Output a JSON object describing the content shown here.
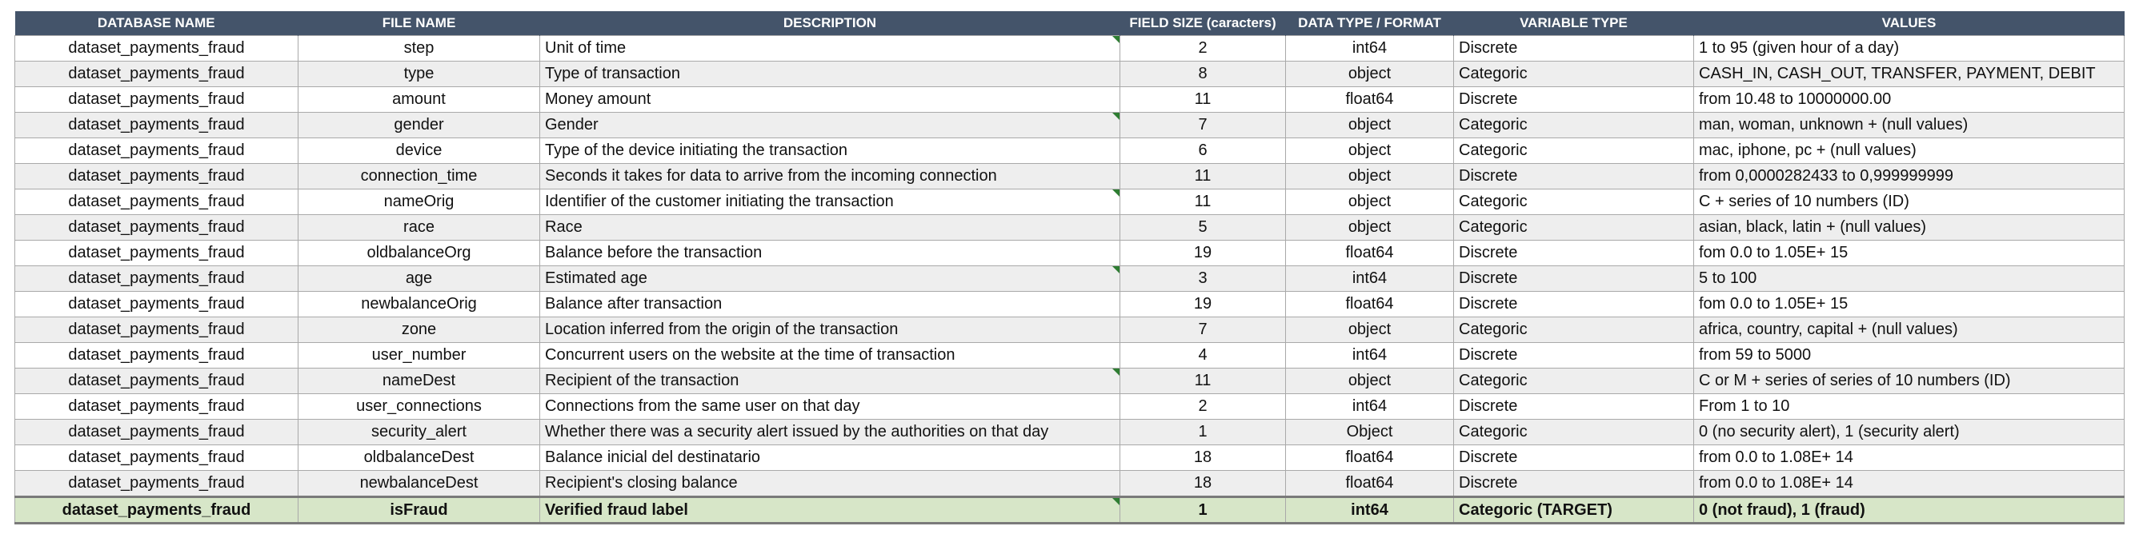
{
  "columns": [
    "DATABASE NAME",
    "FILE NAME",
    "DESCRIPTION",
    "FIELD SIZE (caracters)",
    "DATA TYPE / FORMAT",
    "VARIABLE TYPE",
    "VALUES"
  ],
  "rows": [
    {
      "db": "dataset_payments_fraud",
      "file": "step",
      "desc": "Unit of time",
      "size": "2",
      "dtype": "int64",
      "vtype": "Discrete",
      "values": "1 to 95 (given hour of a day)",
      "note": true
    },
    {
      "db": "dataset_payments_fraud",
      "file": "type",
      "desc": "Type of transaction",
      "size": "8",
      "dtype": "object",
      "vtype": "Categoric",
      "values": "CASH_IN, CASH_OUT, TRANSFER, PAYMENT, DEBIT",
      "note": false
    },
    {
      "db": "dataset_payments_fraud",
      "file": "amount",
      "desc": "Money amount",
      "size": "11",
      "dtype": "float64",
      "vtype": "Discrete",
      "values": "from 10.48 to 10000000.00",
      "note": false
    },
    {
      "db": "dataset_payments_fraud",
      "file": "gender",
      "desc": "Gender",
      "size": "7",
      "dtype": "object",
      "vtype": "Categoric",
      "values": "man, woman, unknown + (null values)",
      "note": true
    },
    {
      "db": "dataset_payments_fraud",
      "file": "device",
      "desc": "Type of the device initiating the transaction",
      "size": "6",
      "dtype": "object",
      "vtype": "Categoric",
      "values": "mac, iphone, pc + (null values)",
      "note": false
    },
    {
      "db": "dataset_payments_fraud",
      "file": "connection_time",
      "desc": "Seconds it takes for data to arrive from the incoming connection",
      "size": "11",
      "dtype": "object",
      "vtype": "Discrete",
      "values": "from 0,0000282433 to 0,999999999",
      "note": false
    },
    {
      "db": "dataset_payments_fraud",
      "file": "nameOrig",
      "desc": "Identifier of the customer initiating the transaction",
      "size": "11",
      "dtype": "object",
      "vtype": "Categoric",
      "values": "C + series of 10 numbers (ID)",
      "note": true
    },
    {
      "db": "dataset_payments_fraud",
      "file": "race",
      "desc": "Race",
      "size": "5",
      "dtype": "object",
      "vtype": "Categoric",
      "values": "asian, black, latin + (null values)",
      "note": false
    },
    {
      "db": "dataset_payments_fraud",
      "file": "oldbalanceOrg",
      "desc": "Balance before the transaction",
      "size": "19",
      "dtype": "float64",
      "vtype": "Discrete",
      "values": "fom 0.0 to  1.05E+ 15",
      "note": false
    },
    {
      "db": "dataset_payments_fraud",
      "file": "age",
      "desc": "Estimated age",
      "size": "3",
      "dtype": "int64",
      "vtype": "Discrete",
      "values": "5 to 100",
      "note": true
    },
    {
      "db": "dataset_payments_fraud",
      "file": "newbalanceOrig",
      "desc": "Balance after transaction",
      "size": "19",
      "dtype": "float64",
      "vtype": "Discrete",
      "values": "fom 0.0 to  1.05E+ 15",
      "note": false
    },
    {
      "db": "dataset_payments_fraud",
      "file": "zone",
      "desc": "Location inferred from the origin of the transaction",
      "size": "7",
      "dtype": "object",
      "vtype": "Categoric",
      "values": "africa, country, capital + (null values)",
      "note": false
    },
    {
      "db": "dataset_payments_fraud",
      "file": "user_number",
      "desc": "Concurrent users on the website at the time of transaction",
      "size": "4",
      "dtype": "int64",
      "vtype": "Discrete",
      "values": "from 59 to 5000",
      "note": false
    },
    {
      "db": "dataset_payments_fraud",
      "file": "nameDest",
      "desc": "Recipient of the transaction",
      "size": "11",
      "dtype": "object",
      "vtype": "Categoric",
      "values": "C or M + series of  series of 10 numbers (ID)",
      "note": true
    },
    {
      "db": "dataset_payments_fraud",
      "file": "user_connections",
      "desc": "Connections from the same user on that day",
      "size": "2",
      "dtype": "int64",
      "vtype": "Discrete",
      "values": "From 1 to 10",
      "note": false
    },
    {
      "db": "dataset_payments_fraud",
      "file": "security_alert",
      "desc": "Whether there was a security alert issued by the authorities on that day",
      "size": "1",
      "dtype": "Object",
      "vtype": "Categoric",
      "values": "0 (no security alert), 1 (security alert)",
      "note": false
    },
    {
      "db": "dataset_payments_fraud",
      "file": "oldbalanceDest",
      "desc": "Balance inicial del destinatario",
      "size": "18",
      "dtype": "float64",
      "vtype": "Discrete",
      "values": "from 0.0 to 1.08E+ 14",
      "note": false
    },
    {
      "db": "dataset_payments_fraud",
      "file": "newbalanceDest",
      "desc": "Recipient's closing balance",
      "size": "18",
      "dtype": "float64",
      "vtype": "Discrete",
      "values": "from 0.0 to 1.08E+ 14",
      "note": false
    },
    {
      "db": "dataset_payments_fraud",
      "file": "isFraud",
      "desc": "Verified fraud label",
      "size": "1",
      "dtype": "int64",
      "vtype": "Categoric (TARGET)",
      "values": "0 (not fraud), 1 (fraud)",
      "note": true,
      "target": true
    }
  ],
  "colors": {
    "header_bg": "#44546a",
    "header_text": "#ffffff",
    "stripe": "#eeeeee",
    "target_bg": "#d7e6c8",
    "note_mark": "#2e7d32"
  }
}
